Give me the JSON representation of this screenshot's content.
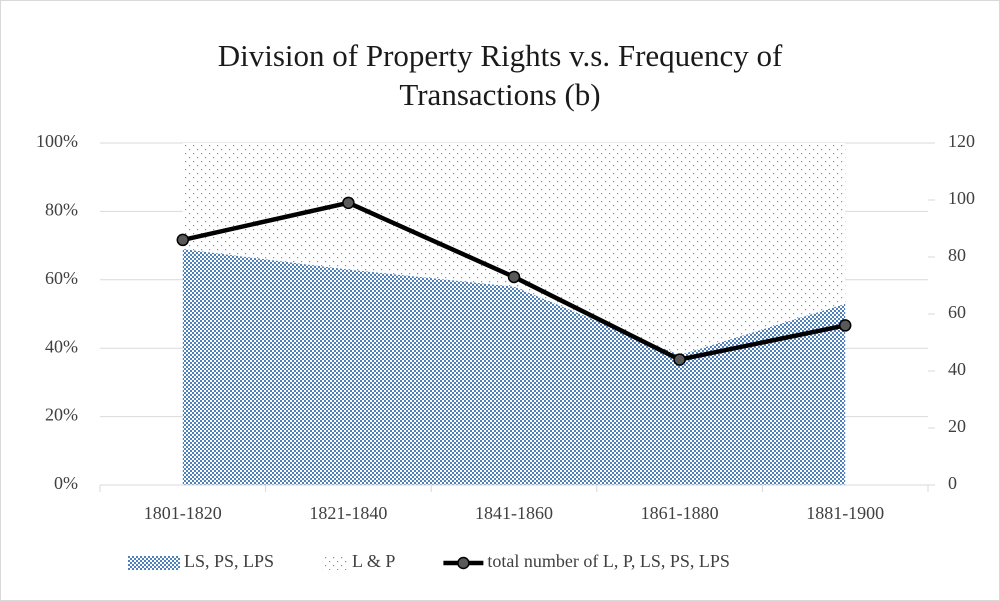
{
  "chart_data": {
    "type": "area",
    "title": [
      "Division of Property Rights v.s. Frequency of",
      "Transactions (b)"
    ],
    "categories": [
      "1801-1820",
      "1821-1840",
      "1841-1860",
      "1861-1880",
      "1881-1900"
    ],
    "series": [
      {
        "name": "LS, PS, LPS",
        "type": "area",
        "color": "#4f81bd",
        "values": [
          69,
          63,
          58,
          38,
          53
        ]
      },
      {
        "name": "L & P",
        "type": "area",
        "color": "#5b9bd5",
        "values": [
          31,
          37,
          42,
          62,
          47
        ]
      },
      {
        "name": "total number of L, P, LS, PS, LPS",
        "type": "line",
        "axis": "y2",
        "color": "#000000",
        "values": [
          86,
          99,
          73,
          44,
          56
        ]
      }
    ],
    "ylim": [
      0,
      100
    ],
    "yticks": [
      {
        "value": 0,
        "label": "0%"
      },
      {
        "value": 20,
        "label": "20%"
      },
      {
        "value": 40,
        "label": "40%"
      },
      {
        "value": 60,
        "label": "60%"
      },
      {
        "value": 80,
        "label": "80%"
      },
      {
        "value": 100,
        "label": "100%"
      }
    ],
    "y2lim": [
      0,
      120
    ],
    "y2ticks": [
      0,
      20,
      40,
      60,
      80,
      100,
      120
    ],
    "grid": true,
    "legend": "bottom"
  }
}
